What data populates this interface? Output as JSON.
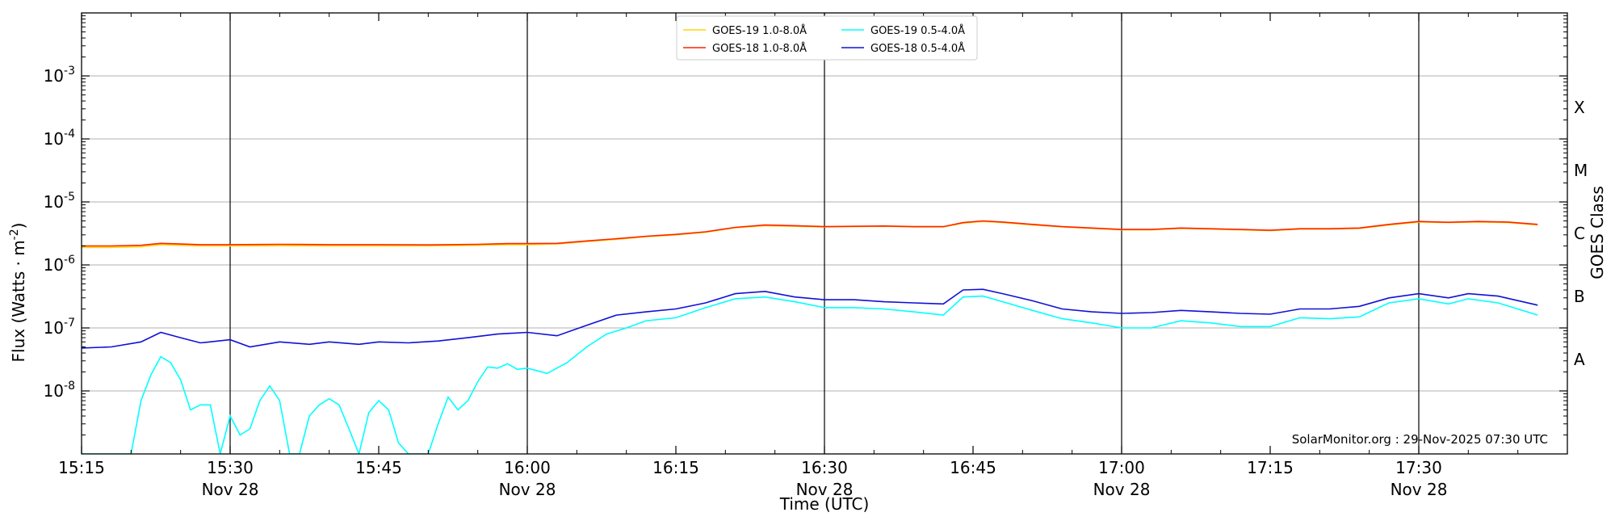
{
  "chart_data": {
    "type": "line",
    "ylabel": "Flux (Watts · m",
    "ylabel_sup": "-2",
    "ylabel_close": ")",
    "xlabel": "Time (UTC)",
    "right_label": "GOES Class",
    "credit": "SolarMonitor.org : 29-Nov-2025 07:30 UTC",
    "y_scale": "log",
    "ylim": [
      1e-09,
      0.01
    ],
    "xlim": [
      "15:15",
      "17:45"
    ],
    "grid": "horizontal",
    "legend_position": "top-center",
    "y_ticks": [
      {
        "value": 0.001,
        "base": "10",
        "exp": "-3"
      },
      {
        "value": 0.0001,
        "base": "10",
        "exp": "-4"
      },
      {
        "value": 1e-05,
        "base": "10",
        "exp": "-5"
      },
      {
        "value": 1e-06,
        "base": "10",
        "exp": "-6"
      },
      {
        "value": 1e-07,
        "base": "10",
        "exp": "-7"
      },
      {
        "value": 1e-08,
        "base": "10",
        "exp": "-8"
      }
    ],
    "x_ticks": [
      {
        "time": "15:15",
        "label": "15:15",
        "sub": ""
      },
      {
        "time": "15:30",
        "label": "15:30",
        "sub": "Nov 28"
      },
      {
        "time": "15:45",
        "label": "15:45",
        "sub": ""
      },
      {
        "time": "16:00",
        "label": "16:00",
        "sub": "Nov 28"
      },
      {
        "time": "16:15",
        "label": "16:15",
        "sub": ""
      },
      {
        "time": "16:30",
        "label": "16:30",
        "sub": "Nov 28"
      },
      {
        "time": "16:45",
        "label": "16:45",
        "sub": ""
      },
      {
        "time": "17:00",
        "label": "17:00",
        "sub": "Nov 28"
      },
      {
        "time": "17:15",
        "label": "17:15",
        "sub": ""
      },
      {
        "time": "17:30",
        "label": "17:30",
        "sub": "Nov 28"
      }
    ],
    "vertical_lines": [
      "15:30",
      "16:00",
      "16:30",
      "17:00",
      "17:30"
    ],
    "goes_classes": [
      {
        "label": "X",
        "value": 0.000316
      },
      {
        "label": "M",
        "value": 3.16e-05
      },
      {
        "label": "C",
        "value": 3.16e-06
      },
      {
        "label": "B",
        "value": 3.16e-07
      },
      {
        "label": "A",
        "value": 3.16e-08
      }
    ],
    "series": [
      {
        "name": "GOES-19 1.0-8.0Å",
        "color": "#ffd700",
        "points": [
          [
            "15:15",
            1.9e-06
          ],
          [
            "15:18",
            1.9e-06
          ],
          [
            "15:21",
            1.95e-06
          ],
          [
            "15:23",
            2.1e-06
          ],
          [
            "15:25",
            2.05e-06
          ],
          [
            "15:27",
            2e-06
          ],
          [
            "15:30",
            2e-06
          ],
          [
            "15:35",
            2.02e-06
          ],
          [
            "15:40",
            2e-06
          ],
          [
            "15:45",
            2e-06
          ],
          [
            "15:50",
            2e-06
          ],
          [
            "15:55",
            2.05e-06
          ],
          [
            "15:58",
            2.1e-06
          ],
          [
            "16:00",
            2.1e-06
          ],
          [
            "16:03",
            2.15e-06
          ],
          [
            "16:06",
            2.35e-06
          ],
          [
            "16:09",
            2.55e-06
          ],
          [
            "16:12",
            2.8e-06
          ],
          [
            "16:15",
            3e-06
          ],
          [
            "16:18",
            3.3e-06
          ],
          [
            "16:21",
            3.9e-06
          ],
          [
            "16:24",
            4.2e-06
          ],
          [
            "16:27",
            4.1e-06
          ],
          [
            "16:30",
            4e-06
          ],
          [
            "16:33",
            4.05e-06
          ],
          [
            "16:36",
            4.1e-06
          ],
          [
            "16:39",
            4e-06
          ],
          [
            "16:42",
            4e-06
          ],
          [
            "16:44",
            4.6e-06
          ],
          [
            "16:46",
            4.9e-06
          ],
          [
            "16:48",
            4.7e-06
          ],
          [
            "16:51",
            4.3e-06
          ],
          [
            "16:54",
            4e-06
          ],
          [
            "16:57",
            3.8e-06
          ],
          [
            "17:00",
            3.6e-06
          ],
          [
            "17:03",
            3.6e-06
          ],
          [
            "17:06",
            3.8e-06
          ],
          [
            "17:09",
            3.7e-06
          ],
          [
            "17:12",
            3.6e-06
          ],
          [
            "17:15",
            3.5e-06
          ],
          [
            "17:18",
            3.7e-06
          ],
          [
            "17:21",
            3.7e-06
          ],
          [
            "17:24",
            3.8e-06
          ],
          [
            "17:27",
            4.3e-06
          ],
          [
            "17:30",
            4.8e-06
          ],
          [
            "17:33",
            4.7e-06
          ],
          [
            "17:36",
            4.8e-06
          ],
          [
            "17:39",
            4.7e-06
          ],
          [
            "17:42",
            4.3e-06
          ]
        ]
      },
      {
        "name": "GOES-18 1.0-8.0Å",
        "color": "#ff2200",
        "points": [
          [
            "15:15",
            2e-06
          ],
          [
            "15:18",
            2e-06
          ],
          [
            "15:21",
            2.05e-06
          ],
          [
            "15:23",
            2.2e-06
          ],
          [
            "15:25",
            2.15e-06
          ],
          [
            "15:27",
            2.1e-06
          ],
          [
            "15:30",
            2.1e-06
          ],
          [
            "15:35",
            2.12e-06
          ],
          [
            "15:40",
            2.1e-06
          ],
          [
            "15:45",
            2.1e-06
          ],
          [
            "15:50",
            2.08e-06
          ],
          [
            "15:55",
            2.12e-06
          ],
          [
            "15:58",
            2.18e-06
          ],
          [
            "16:00",
            2.18e-06
          ],
          [
            "16:03",
            2.2e-06
          ],
          [
            "16:06",
            2.4e-06
          ],
          [
            "16:09",
            2.6e-06
          ],
          [
            "16:12",
            2.85e-06
          ],
          [
            "16:15",
            3.05e-06
          ],
          [
            "16:18",
            3.35e-06
          ],
          [
            "16:21",
            3.95e-06
          ],
          [
            "16:24",
            4.3e-06
          ],
          [
            "16:27",
            4.2e-06
          ],
          [
            "16:30",
            4.05e-06
          ],
          [
            "16:33",
            4.1e-06
          ],
          [
            "16:36",
            4.15e-06
          ],
          [
            "16:39",
            4.05e-06
          ],
          [
            "16:42",
            4.05e-06
          ],
          [
            "16:44",
            4.7e-06
          ],
          [
            "16:46",
            5e-06
          ],
          [
            "16:48",
            4.8e-06
          ],
          [
            "16:51",
            4.4e-06
          ],
          [
            "16:54",
            4.05e-06
          ],
          [
            "16:57",
            3.85e-06
          ],
          [
            "17:00",
            3.65e-06
          ],
          [
            "17:03",
            3.65e-06
          ],
          [
            "17:06",
            3.85e-06
          ],
          [
            "17:09",
            3.75e-06
          ],
          [
            "17:12",
            3.65e-06
          ],
          [
            "17:15",
            3.55e-06
          ],
          [
            "17:18",
            3.75e-06
          ],
          [
            "17:21",
            3.75e-06
          ],
          [
            "17:24",
            3.85e-06
          ],
          [
            "17:27",
            4.4e-06
          ],
          [
            "17:30",
            4.9e-06
          ],
          [
            "17:33",
            4.75e-06
          ],
          [
            "17:36",
            4.9e-06
          ],
          [
            "17:39",
            4.8e-06
          ],
          [
            "17:42",
            4.4e-06
          ]
        ]
      },
      {
        "name": "GOES-19 0.5-4.0Å",
        "color": "#00ffff",
        "points": [
          [
            "15:15",
            8e-10
          ],
          [
            "15:19",
            8e-10
          ],
          [
            "15:20",
            1e-09
          ],
          [
            "15:21",
            7e-09
          ],
          [
            "15:22",
            1.8e-08
          ],
          [
            "15:23",
            3.5e-08
          ],
          [
            "15:24",
            2.8e-08
          ],
          [
            "15:25",
            1.5e-08
          ],
          [
            "15:26",
            5e-09
          ],
          [
            "15:27",
            6e-09
          ],
          [
            "15:28",
            6e-09
          ],
          [
            "15:29",
            1e-09
          ],
          [
            "15:30",
            4e-09
          ],
          [
            "15:31",
            2e-09
          ],
          [
            "15:32",
            2.5e-09
          ],
          [
            "15:33",
            7e-09
          ],
          [
            "15:34",
            1.2e-08
          ],
          [
            "15:35",
            7e-09
          ],
          [
            "15:36",
            9e-10
          ],
          [
            "15:37",
            9e-10
          ],
          [
            "15:38",
            4e-09
          ],
          [
            "15:39",
            6e-09
          ],
          [
            "15:40",
            7.5e-09
          ],
          [
            "15:41",
            6e-09
          ],
          [
            "15:42",
            2.5e-09
          ],
          [
            "15:43",
            9e-10
          ],
          [
            "15:44",
            4.5e-09
          ],
          [
            "15:45",
            7e-09
          ],
          [
            "15:46",
            5e-09
          ],
          [
            "15:47",
            1.5e-09
          ],
          [
            "15:48",
            9e-10
          ],
          [
            "15:50",
            9e-10
          ],
          [
            "15:51",
            3e-09
          ],
          [
            "15:52",
            8e-09
          ],
          [
            "15:53",
            5e-09
          ],
          [
            "15:54",
            7e-09
          ],
          [
            "15:55",
            1.4e-08
          ],
          [
            "15:56",
            2.4e-08
          ],
          [
            "15:57",
            2.3e-08
          ],
          [
            "15:58",
            2.7e-08
          ],
          [
            "15:59",
            2.2e-08
          ],
          [
            "16:00",
            2.3e-08
          ],
          [
            "16:02",
            1.9e-08
          ],
          [
            "16:04",
            2.8e-08
          ],
          [
            "16:06",
            5e-08
          ],
          [
            "16:08",
            8e-08
          ],
          [
            "16:10",
            1e-07
          ],
          [
            "16:12",
            1.3e-07
          ],
          [
            "16:15",
            1.45e-07
          ],
          [
            "16:18",
            2.1e-07
          ],
          [
            "16:21",
            2.9e-07
          ],
          [
            "16:24",
            3.1e-07
          ],
          [
            "16:27",
            2.6e-07
          ],
          [
            "16:30",
            2.1e-07
          ],
          [
            "16:33",
            2.1e-07
          ],
          [
            "16:36",
            2e-07
          ],
          [
            "16:39",
            1.8e-07
          ],
          [
            "16:42",
            1.6e-07
          ],
          [
            "16:44",
            3.1e-07
          ],
          [
            "16:46",
            3.2e-07
          ],
          [
            "16:48",
            2.6e-07
          ],
          [
            "16:51",
            1.9e-07
          ],
          [
            "16:54",
            1.4e-07
          ],
          [
            "16:57",
            1.2e-07
          ],
          [
            "17:00",
            1e-07
          ],
          [
            "17:03",
            1e-07
          ],
          [
            "17:06",
            1.3e-07
          ],
          [
            "17:09",
            1.2e-07
          ],
          [
            "17:12",
            1.05e-07
          ],
          [
            "17:15",
            1.05e-07
          ],
          [
            "17:18",
            1.45e-07
          ],
          [
            "17:21",
            1.4e-07
          ],
          [
            "17:24",
            1.5e-07
          ],
          [
            "17:27",
            2.5e-07
          ],
          [
            "17:30",
            2.9e-07
          ],
          [
            "17:33",
            2.4e-07
          ],
          [
            "17:35",
            2.9e-07
          ],
          [
            "17:38",
            2.5e-07
          ],
          [
            "17:42",
            1.6e-07
          ]
        ]
      },
      {
        "name": "GOES-18 0.5-4.0Å",
        "color": "#1010d8",
        "points": [
          [
            "15:15",
            4.8e-08
          ],
          [
            "15:18",
            5e-08
          ],
          [
            "15:21",
            6e-08
          ],
          [
            "15:23",
            8.5e-08
          ],
          [
            "15:25",
            7e-08
          ],
          [
            "15:27",
            5.8e-08
          ],
          [
            "15:30",
            6.5e-08
          ],
          [
            "15:32",
            5e-08
          ],
          [
            "15:35",
            6e-08
          ],
          [
            "15:38",
            5.5e-08
          ],
          [
            "15:40",
            6e-08
          ],
          [
            "15:43",
            5.5e-08
          ],
          [
            "15:45",
            6e-08
          ],
          [
            "15:48",
            5.8e-08
          ],
          [
            "15:51",
            6.2e-08
          ],
          [
            "15:54",
            7e-08
          ],
          [
            "15:57",
            8e-08
          ],
          [
            "16:00",
            8.5e-08
          ],
          [
            "16:03",
            7.5e-08
          ],
          [
            "16:06",
            1.1e-07
          ],
          [
            "16:09",
            1.6e-07
          ],
          [
            "16:12",
            1.8e-07
          ],
          [
            "16:15",
            2e-07
          ],
          [
            "16:18",
            2.5e-07
          ],
          [
            "16:21",
            3.5e-07
          ],
          [
            "16:24",
            3.8e-07
          ],
          [
            "16:27",
            3.1e-07
          ],
          [
            "16:30",
            2.8e-07
          ],
          [
            "16:33",
            2.8e-07
          ],
          [
            "16:36",
            2.6e-07
          ],
          [
            "16:39",
            2.5e-07
          ],
          [
            "16:42",
            2.4e-07
          ],
          [
            "16:44",
            4e-07
          ],
          [
            "16:46",
            4.1e-07
          ],
          [
            "16:48",
            3.5e-07
          ],
          [
            "16:51",
            2.7e-07
          ],
          [
            "16:54",
            2e-07
          ],
          [
            "16:57",
            1.8e-07
          ],
          [
            "17:00",
            1.7e-07
          ],
          [
            "17:03",
            1.75e-07
          ],
          [
            "17:06",
            1.9e-07
          ],
          [
            "17:09",
            1.8e-07
          ],
          [
            "17:12",
            1.7e-07
          ],
          [
            "17:15",
            1.65e-07
          ],
          [
            "17:18",
            2e-07
          ],
          [
            "17:21",
            2e-07
          ],
          [
            "17:24",
            2.2e-07
          ],
          [
            "17:27",
            3e-07
          ],
          [
            "17:30",
            3.5e-07
          ],
          [
            "17:33",
            3e-07
          ],
          [
            "17:35",
            3.5e-07
          ],
          [
            "17:38",
            3.2e-07
          ],
          [
            "17:42",
            2.3e-07
          ]
        ]
      }
    ]
  }
}
